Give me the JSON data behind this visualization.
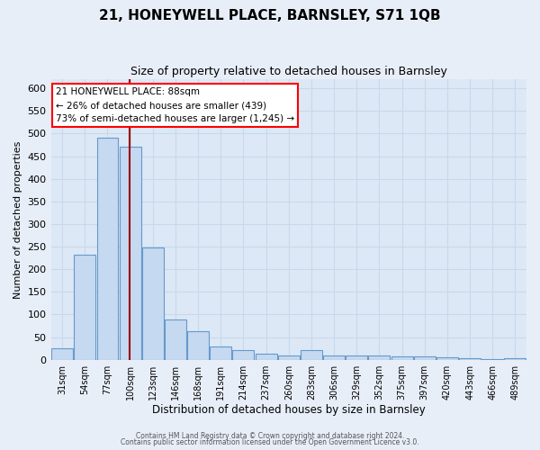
{
  "title": "21, HONEYWELL PLACE, BARNSLEY, S71 1QB",
  "subtitle": "Size of property relative to detached houses in Barnsley",
  "xlabel": "Distribution of detached houses by size in Barnsley",
  "ylabel": "Number of detached properties",
  "bar_labels": [
    "31sqm",
    "54sqm",
    "77sqm",
    "100sqm",
    "123sqm",
    "146sqm",
    "168sqm",
    "191sqm",
    "214sqm",
    "237sqm",
    "260sqm",
    "283sqm",
    "306sqm",
    "329sqm",
    "352sqm",
    "375sqm",
    "397sqm",
    "420sqm",
    "443sqm",
    "466sqm",
    "489sqm"
  ],
  "bar_values": [
    25,
    232,
    490,
    470,
    248,
    88,
    63,
    30,
    22,
    13,
    10,
    22,
    10,
    10,
    10,
    8,
    8,
    5,
    3,
    2,
    3
  ],
  "bar_color": "#c5d9f0",
  "bar_edge_color": "#6699cc",
  "ylim": [
    0,
    620
  ],
  "yticks": [
    0,
    50,
    100,
    150,
    200,
    250,
    300,
    350,
    400,
    450,
    500,
    550,
    600
  ],
  "vline_color": "#990000",
  "vline_bin": 3,
  "annotation_lines": [
    "21 HONEYWELL PLACE: 88sqm",
    "← 26% of detached houses are smaller (439)",
    "73% of semi-detached houses are larger (1,245) →"
  ],
  "footer_line1": "Contains HM Land Registry data © Crown copyright and database right 2024.",
  "footer_line2": "Contains public sector information licensed under the Open Government Licence v3.0.",
  "bg_color": "#dce8f5",
  "grid_color": "#c8d8ec",
  "fig_bg": "#e8eef8"
}
